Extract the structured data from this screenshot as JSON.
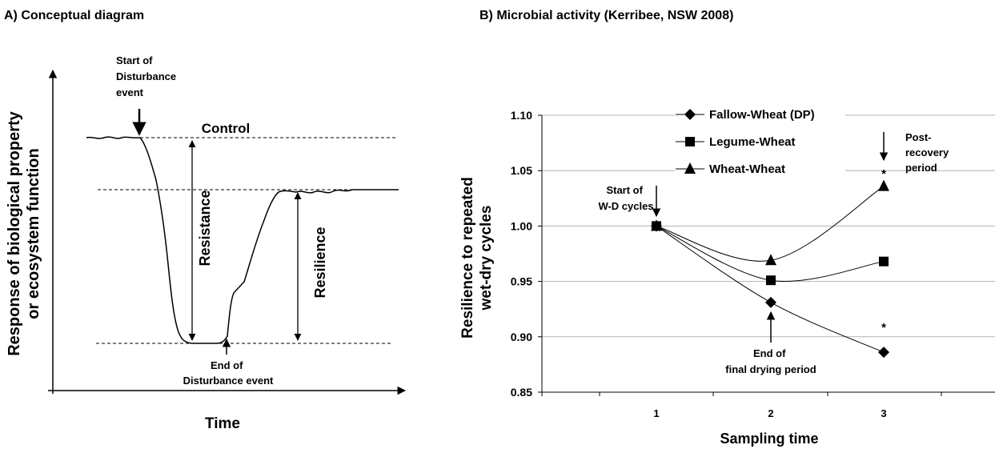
{
  "panel_a": {
    "title": "A) Conceptual diagram",
    "ylabel_line1": "Response of biological property",
    "ylabel_line2": "or ecosystem function",
    "xlabel": "Time",
    "control_label": "Control",
    "resistance_label": "Resistance",
    "resilience_label": "Resilience",
    "start_label": [
      "Start of",
      "Disturbance",
      "event"
    ],
    "end_label": [
      "End of",
      "Disturbance event"
    ]
  },
  "panel_b": {
    "title": "B) Microbial activity (Kerribee, NSW 2008)",
    "ylabel_line1": "Resilience to repeated",
    "ylabel_line2": "wet-dry cycles",
    "xlabel": "Sampling time",
    "annotations": {
      "start": [
        "Start of",
        "W-D cycles"
      ],
      "end": [
        "End of",
        "final drying period"
      ],
      "post": [
        "Post-",
        "recovery",
        "period"
      ],
      "asterisk": "*"
    }
  },
  "chart_data": {
    "type": "line",
    "title": "B) Microbial activity (Kerribee, NSW 2008)",
    "xlabel": "Sampling time",
    "ylabel": "Resilience to repeated wet-dry cycles",
    "categories": [
      "1",
      "2",
      "3"
    ],
    "ylim": [
      0.85,
      1.1
    ],
    "yticks": [
      "0.85",
      "0.90",
      "0.95",
      "1.00",
      "1.05",
      "1.10"
    ],
    "grid": true,
    "legend": "top-center",
    "series": [
      {
        "name": "Fallow-Wheat (DP)",
        "marker": "diamond",
        "values": [
          1.0,
          0.931,
          0.886
        ]
      },
      {
        "name": "Legume-Wheat",
        "marker": "square",
        "values": [
          1.0,
          0.951,
          0.968
        ]
      },
      {
        "name": "Wheat-Wheat",
        "marker": "triangle",
        "values": [
          1.0,
          0.969,
          1.036
        ]
      }
    ]
  }
}
